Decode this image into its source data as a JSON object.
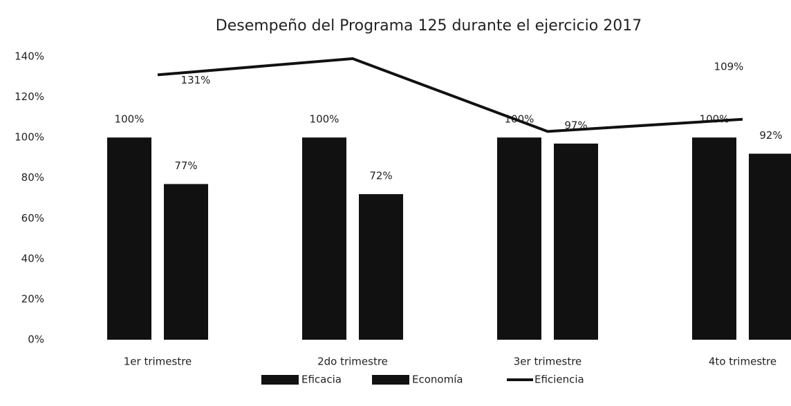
{
  "chart_data": {
    "type": "bar-line",
    "title": "Desempeño del Programa 125 durante el ejercicio 2017",
    "categories": [
      "1er trimestre",
      "2do trimestre",
      "3er trimestre",
      "4to trimestre"
    ],
    "series": [
      {
        "name": "Eficacia",
        "type": "bar",
        "color": "#111111",
        "values": [
          100,
          100,
          100,
          100
        ],
        "value_labels": [
          "100%",
          "100%",
          "100%",
          "100%"
        ]
      },
      {
        "name": "Economía",
        "type": "bar",
        "color": "#111111",
        "values": [
          77,
          72,
          97,
          92
        ],
        "value_labels": [
          "77%",
          "72%",
          "97%",
          "92%"
        ]
      },
      {
        "name": "Eficiencia",
        "type": "line",
        "color": "#111111",
        "values": [
          131,
          139,
          103,
          109
        ],
        "value_labels": [
          "131%",
          null,
          null,
          "109%"
        ]
      }
    ],
    "ylim": [
      0,
      140
    ],
    "yticks": [
      {
        "value": 0,
        "label": "0%"
      },
      {
        "value": 20,
        "label": "20%"
      },
      {
        "value": 40,
        "label": "40%"
      },
      {
        "value": 60,
        "label": "60%"
      },
      {
        "value": 80,
        "label": "80%"
      },
      {
        "value": 100,
        "label": "100%"
      },
      {
        "value": 120,
        "label": "120%"
      },
      {
        "value": 140,
        "label": "140%"
      }
    ],
    "grid": false,
    "legend": "bottom"
  }
}
